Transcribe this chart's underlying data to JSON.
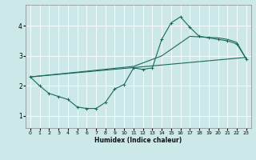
{
  "xlabel": "Humidex (Indice chaleur)",
  "background_color": "#cce8e8",
  "grid_color": "#b0d4d4",
  "line_color": "#1a6b5a",
  "xlim": [
    -0.5,
    23.5
  ],
  "ylim": [
    0.6,
    4.7
  ],
  "yticks": [
    1,
    2,
    3,
    4
  ],
  "xticks": [
    0,
    1,
    2,
    3,
    4,
    5,
    6,
    7,
    8,
    9,
    10,
    11,
    12,
    13,
    14,
    15,
    16,
    17,
    18,
    19,
    20,
    21,
    22,
    23
  ],
  "curve1_x": [
    0,
    1,
    2,
    3,
    4,
    5,
    6,
    7,
    8,
    9,
    10,
    11,
    12,
    13,
    14,
    15,
    16,
    17,
    18,
    19,
    20,
    21,
    22,
    23
  ],
  "curve1_y": [
    2.3,
    2.0,
    1.75,
    1.65,
    1.55,
    1.3,
    1.25,
    1.25,
    1.45,
    1.9,
    2.05,
    2.6,
    2.55,
    2.6,
    3.55,
    4.1,
    4.3,
    3.95,
    3.65,
    3.6,
    3.55,
    3.5,
    3.4,
    2.9
  ],
  "curve2_x": [
    0,
    23
  ],
  "curve2_y": [
    2.3,
    2.95
  ],
  "curve3_x": [
    0,
    11,
    14,
    17,
    20,
    21,
    22,
    23
  ],
  "curve3_y": [
    2.3,
    2.65,
    3.0,
    3.65,
    3.6,
    3.55,
    3.45,
    2.9
  ],
  "spine_color": "#888888"
}
